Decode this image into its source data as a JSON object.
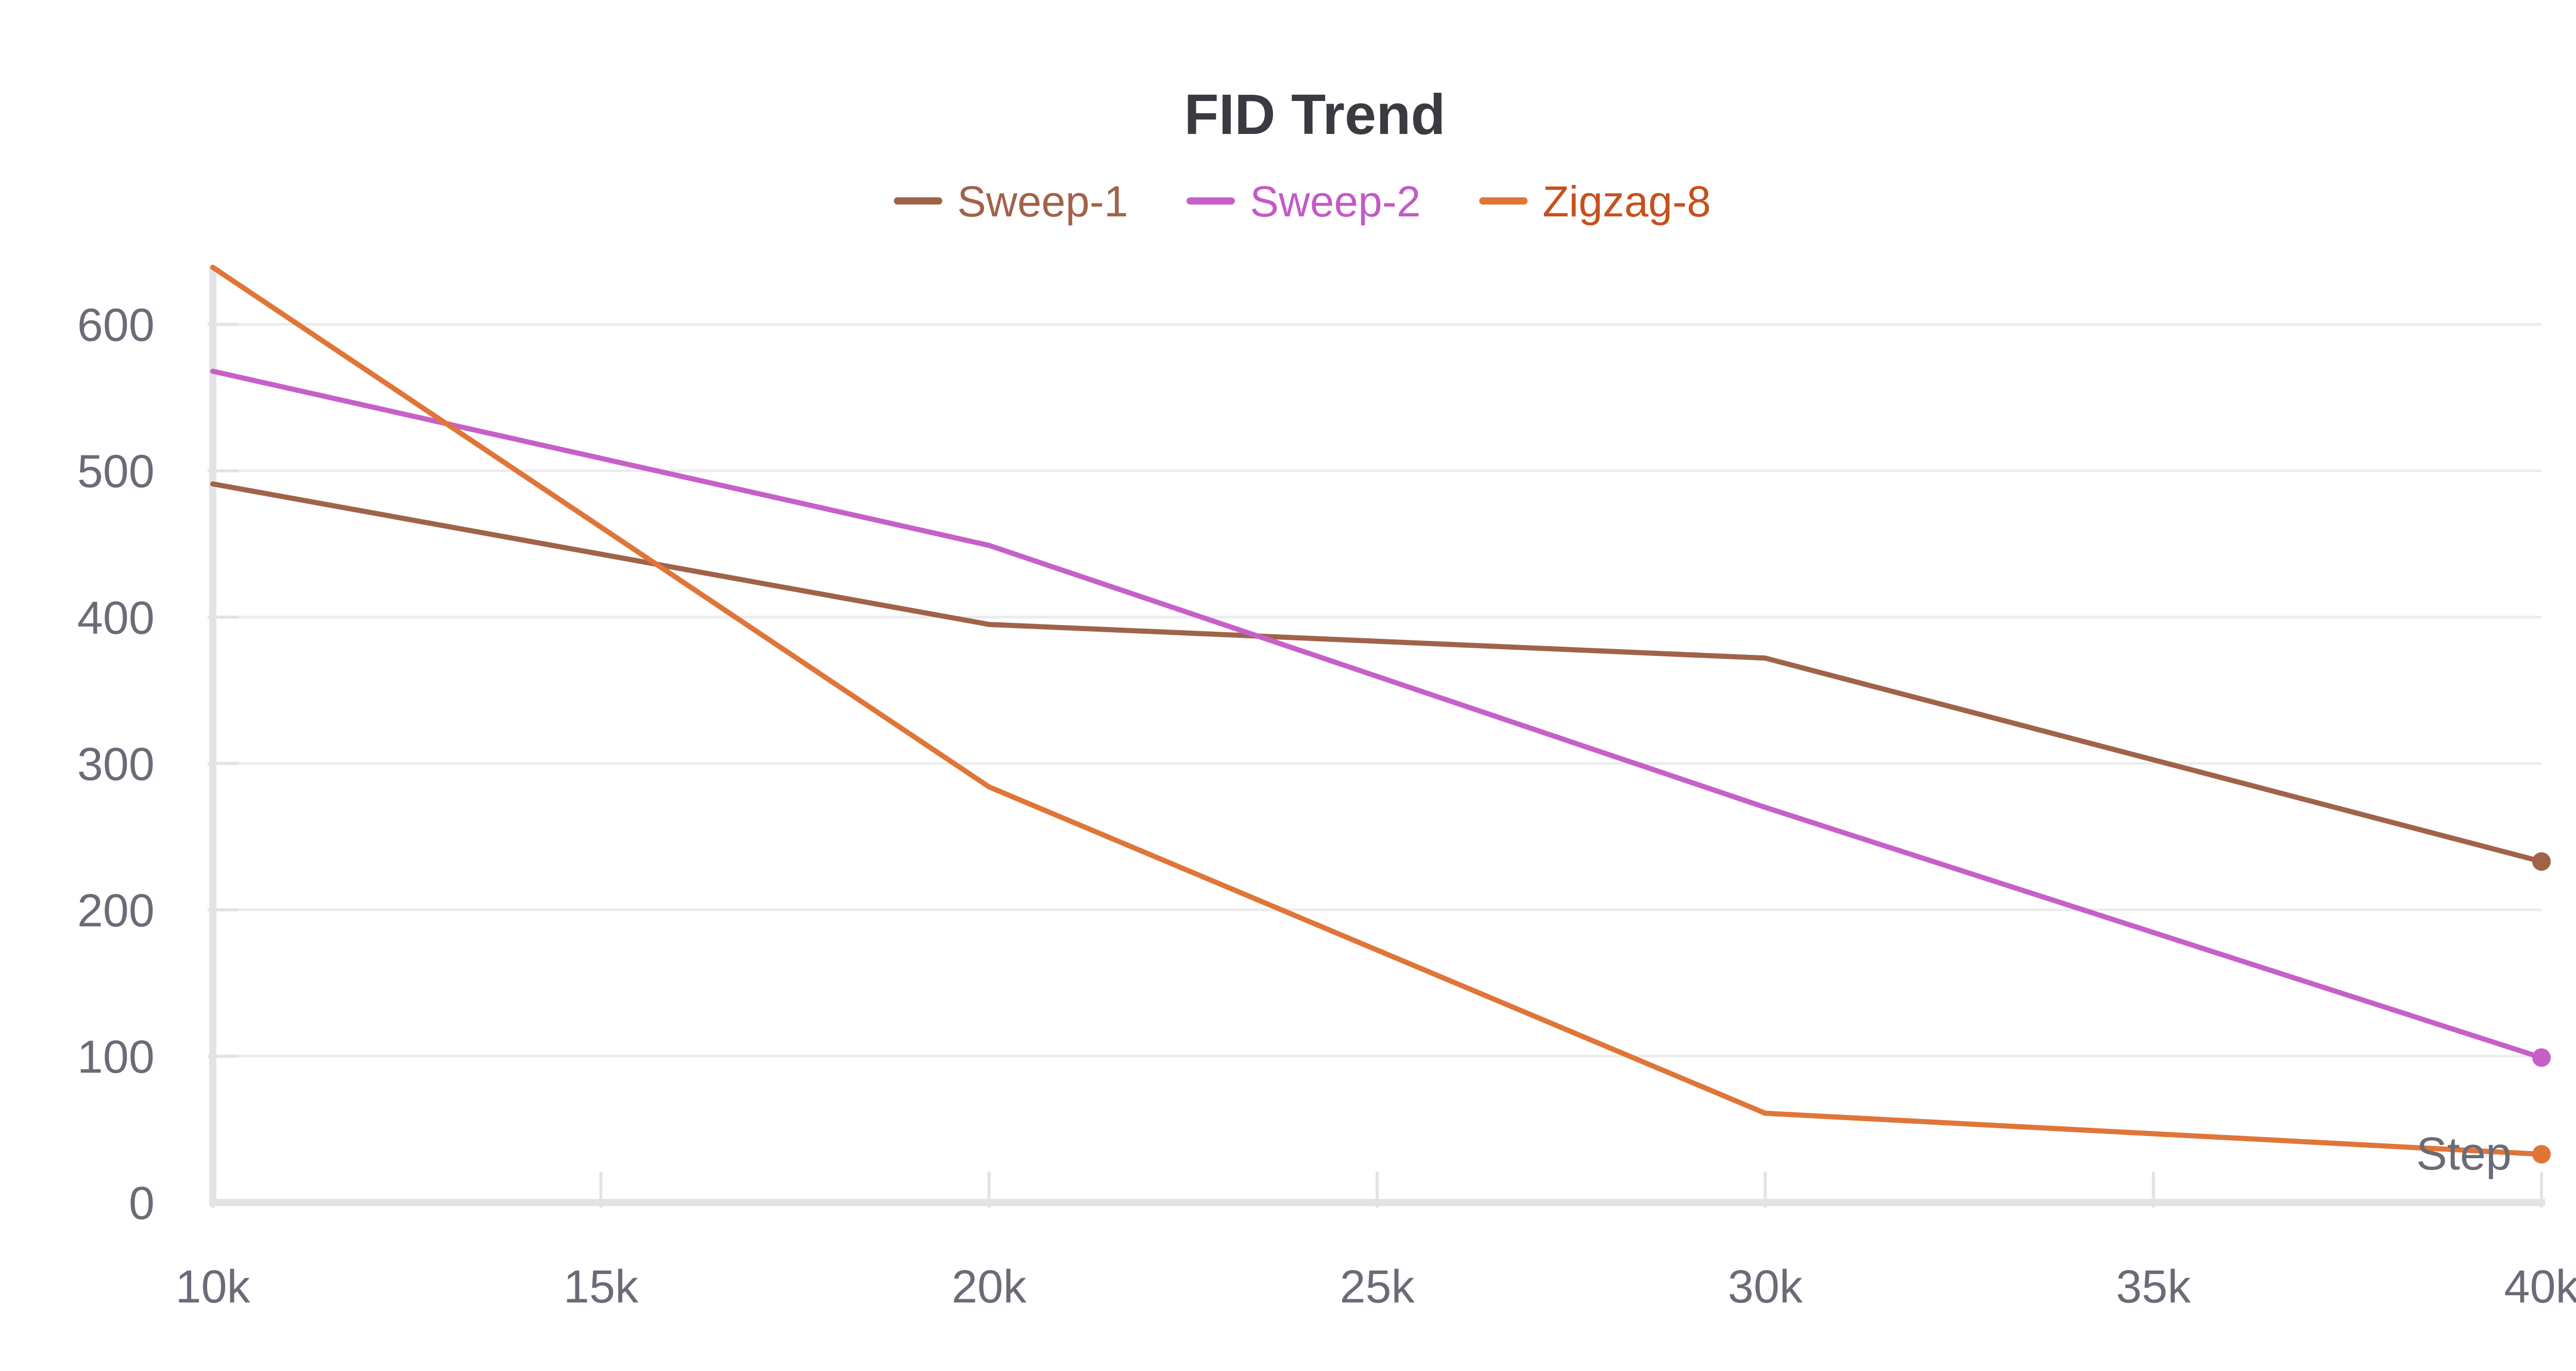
{
  "chart_data": {
    "type": "line",
    "title": "FID Trend",
    "xlabel": "Step",
    "ylabel": "",
    "x_tick_labels": [
      "10k",
      "15k",
      "20k",
      "25k",
      "30k",
      "35k",
      "40k"
    ],
    "x_ticks": [
      10000,
      15000,
      20000,
      25000,
      30000,
      35000,
      40000
    ],
    "y_tick_labels": [
      "0",
      "100",
      "200",
      "300",
      "400",
      "500",
      "600"
    ],
    "y_ticks": [
      0,
      100,
      200,
      300,
      400,
      500,
      600
    ],
    "xlim": [
      10000,
      40000
    ],
    "ylim": [
      0,
      640
    ],
    "grid": true,
    "legend_position": "top-center",
    "x": [
      10000,
      20000,
      30000,
      40000
    ],
    "series": [
      {
        "name": "Sweep-1",
        "color": "#a0634a",
        "legend_text_color": "#a0634a",
        "values": [
          491,
          395,
          372,
          233
        ]
      },
      {
        "name": "Sweep-2",
        "color": "#c660c8",
        "legend_text_color": "#c45ac6",
        "values": [
          568,
          449,
          270,
          99
        ]
      },
      {
        "name": "Zigzag-8",
        "color": "#e07538",
        "legend_text_color": "#c8501c",
        "values": [
          639,
          284,
          61,
          33
        ]
      }
    ]
  }
}
